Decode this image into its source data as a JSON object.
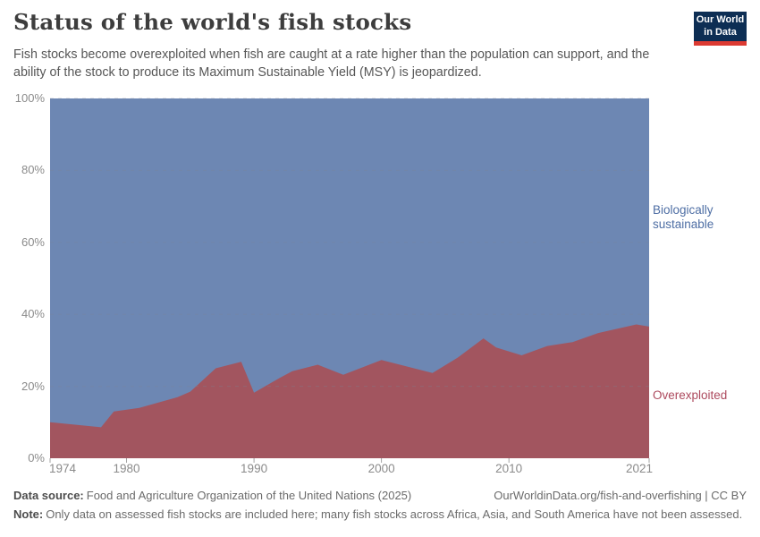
{
  "header": {
    "title": "Status of the world's fish stocks",
    "subtitle": "Fish stocks become overexploited when fish are caught at a rate higher than the population can support, and the ability of the stock to produce its Maximum Sustainable Yield (MSY) is jeopardized.",
    "logo": {
      "line1": "Our World",
      "line2": "in Data"
    }
  },
  "chart_data": {
    "type": "area",
    "stacked": true,
    "title": "Status of the world's fish stocks",
    "xlabel": "",
    "ylabel": "",
    "xlim": [
      1974,
      2021
    ],
    "ylim": [
      0,
      100
    ],
    "grid": "horizontal-dashed",
    "legend_position": "right-edge-labels",
    "x": [
      1974,
      1978,
      1979,
      1981,
      1984,
      1985,
      1987,
      1989,
      1990,
      1992,
      1993,
      1995,
      1997,
      2000,
      2004,
      2006,
      2008,
      2009,
      2011,
      2013,
      2015,
      2017,
      2020,
      2021
    ],
    "series": [
      {
        "name": "Overexploited",
        "color": "#a2555f",
        "label_color": "#ad4a5e",
        "values": [
          10,
          8.6,
          13,
          14,
          17,
          18.5,
          25,
          26.8,
          18.2,
          22.3,
          24.2,
          26,
          23.2,
          27.3,
          23.7,
          28,
          33.3,
          30.8,
          28.6,
          31.2,
          32.3,
          34.8,
          37.2,
          36.6
        ]
      },
      {
        "name": "Biologically sustainable",
        "color": "#6d87b3",
        "label_color": "#4e6ea4",
        "values": [
          90,
          91.4,
          87,
          86,
          83,
          81.5,
          75,
          73.2,
          81.8,
          77.7,
          75.8,
          74,
          76.8,
          72.7,
          76.3,
          72,
          66.7,
          69.2,
          71.4,
          68.8,
          67.7,
          65.2,
          62.8,
          63.4
        ]
      }
    ],
    "x_ticks": {
      "values": [
        1974,
        1980,
        1990,
        2000,
        2010,
        2021
      ],
      "labels": [
        "1974",
        "1980",
        "1990",
        "2000",
        "2010",
        "2021"
      ]
    },
    "y_ticks": {
      "values": [
        0,
        20,
        40,
        60,
        80,
        100
      ],
      "labels": [
        "0%",
        "20%",
        "40%",
        "60%",
        "80%",
        "100%"
      ]
    }
  },
  "footer": {
    "source_label": "Data source:",
    "source_text": "Food and Agriculture Organization of the United Nations (2025)",
    "attribution": "OurWorldinData.org/fish-and-overfishing | CC BY",
    "note_label": "Note:",
    "note_text": "Only data on assessed fish stocks are included here; many fish stocks across Africa, Asia, and South America have not been assessed."
  }
}
